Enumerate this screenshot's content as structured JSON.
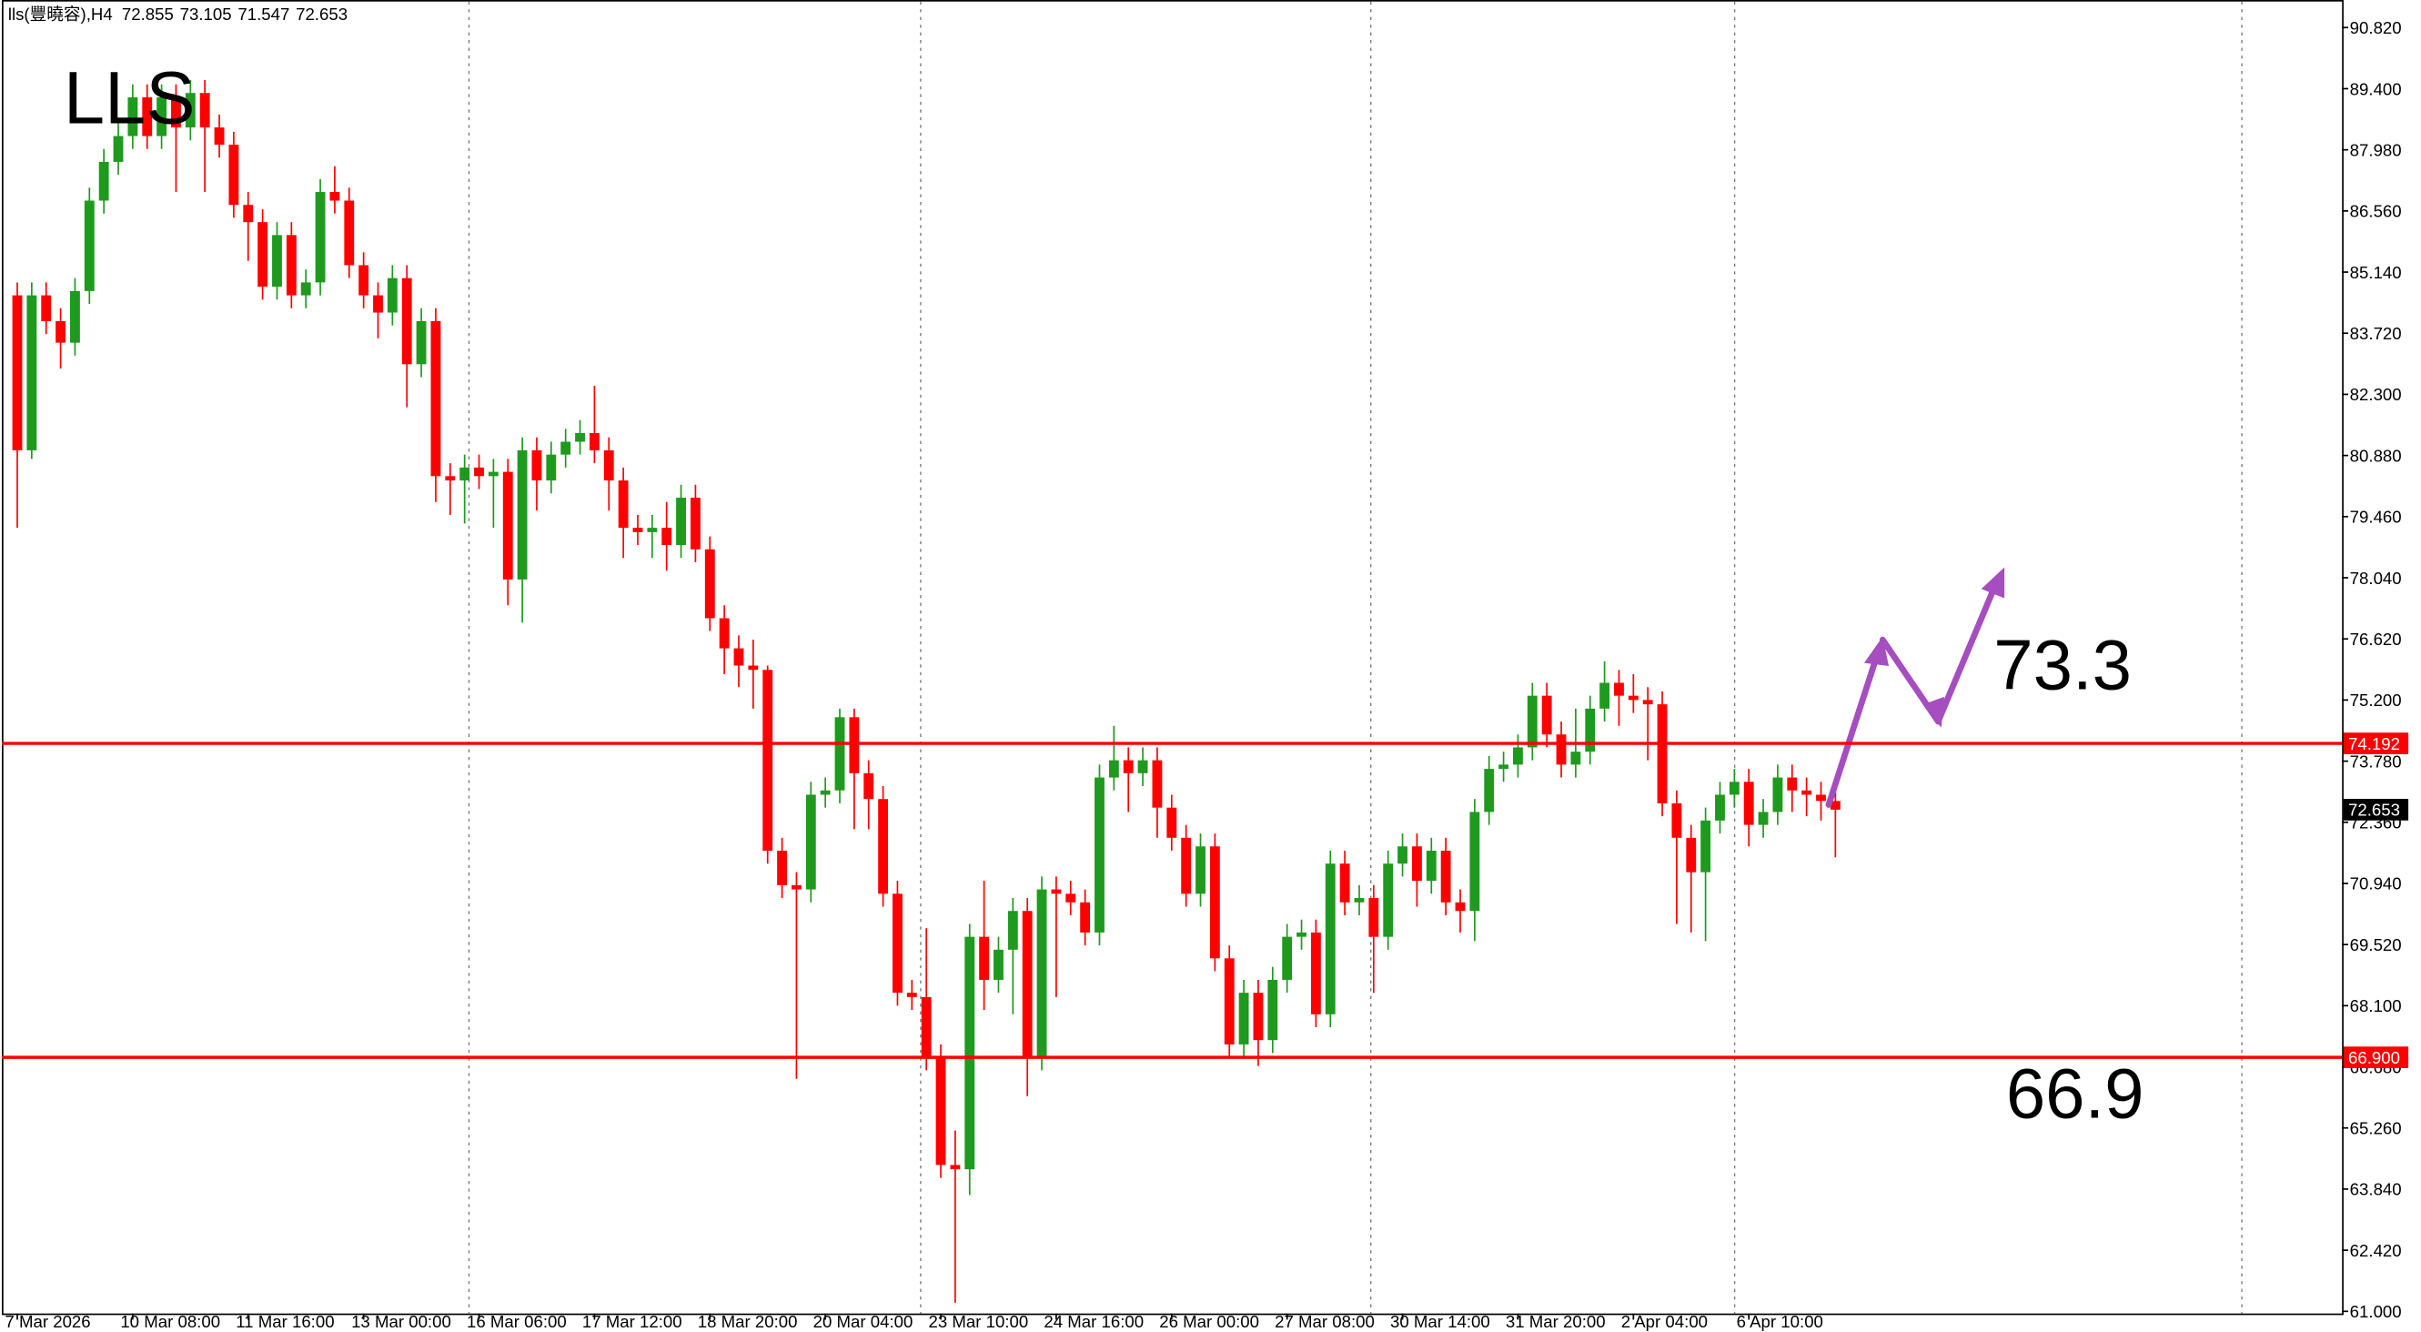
{
  "chart_data": {
    "type": "candlestick",
    "title": "lls(豐曉容),H4",
    "annotations": [
      "LLS",
      "73.3",
      "66.9"
    ],
    "categories": [
      "7 Mar 2026",
      null,
      null,
      null,
      null,
      null,
      null,
      null,
      "10 Mar 08:00",
      null,
      null,
      null,
      null,
      null,
      null,
      null,
      "11 Mar 16:00",
      null,
      null,
      null,
      null,
      null,
      null,
      null,
      "13 Mar 00:00",
      null,
      null,
      null,
      null,
      null,
      null,
      null,
      "16 Mar 06:00",
      null,
      null,
      null,
      null,
      null,
      null,
      null,
      "17 Mar 12:00",
      null,
      null,
      null,
      null,
      null,
      null,
      null,
      "18 Mar 20:00",
      null,
      null,
      null,
      null,
      null,
      null,
      null,
      "20 Mar 04:00",
      null,
      null,
      null,
      null,
      null,
      null,
      null,
      "23 Mar 10:00",
      null,
      null,
      null,
      null,
      null,
      null,
      null,
      "24 Mar 16:00",
      null,
      null,
      null,
      null,
      null,
      null,
      null,
      "26 Mar 00:00",
      null,
      null,
      null,
      null,
      null,
      null,
      null,
      "27 Mar 08:00",
      null,
      null,
      null,
      null,
      null,
      null,
      null,
      "30 Mar 14:00",
      null,
      null,
      null,
      null,
      null,
      null,
      null,
      "31 Mar 20:00",
      null,
      null,
      null,
      null,
      null,
      null,
      null,
      "2 Apr 04:00",
      null,
      null,
      null,
      null,
      null,
      null,
      null,
      "6 Apr 10:00",
      null,
      null,
      null,
      null,
      null,
      null
    ],
    "open": [
      84.6,
      81.0,
      84.6,
      84.0,
      83.5,
      84.7,
      86.8,
      87.7,
      88.3,
      89.2,
      88.3,
      89.2,
      88.5,
      89.3,
      88.5,
      88.1,
      86.7,
      86.3,
      84.8,
      86.0,
      84.6,
      84.9,
      87.0,
      86.8,
      85.3,
      84.6,
      84.2,
      85.0,
      83.0,
      84.0,
      80.4,
      80.3,
      80.6,
      80.4,
      80.5,
      78.0,
      81.0,
      80.3,
      80.9,
      81.2,
      81.4,
      81.0,
      80.3,
      79.2,
      79.1,
      79.2,
      78.8,
      79.9,
      78.7,
      77.1,
      76.4,
      76.0,
      75.9,
      71.7,
      70.9,
      70.8,
      73.0,
      73.1,
      74.8,
      73.5,
      72.9,
      70.7,
      68.4,
      68.3,
      66.9,
      64.4,
      64.3,
      69.7,
      68.7,
      69.4,
      70.3,
      66.9,
      70.8,
      70.7,
      70.5,
      69.8,
      73.4,
      73.8,
      73.5,
      73.8,
      72.7,
      72.0,
      70.7,
      71.8,
      69.2,
      67.2,
      68.4,
      67.3,
      68.7,
      69.7,
      69.8,
      67.9,
      71.4,
      70.5,
      70.6,
      69.7,
      71.4,
      71.8,
      71.0,
      71.7,
      70.5,
      70.3,
      72.6,
      73.6,
      73.7,
      74.1,
      75.3,
      74.4,
      73.7,
      74.0,
      75.0,
      75.6,
      75.3,
      75.2,
      75.1,
      72.8,
      72.0,
      71.2,
      72.4,
      73.0,
      73.3,
      72.3,
      72.6,
      73.4,
      73.1,
      73.0,
      72.855
    ],
    "high": [
      84.9,
      84.9,
      84.9,
      84.3,
      85.0,
      87.1,
      88.0,
      88.6,
      89.5,
      89.5,
      89.5,
      89.5,
      89.6,
      89.6,
      88.8,
      88.4,
      87.0,
      86.6,
      86.3,
      86.3,
      85.2,
      87.3,
      87.6,
      87.1,
      85.6,
      84.9,
      85.3,
      85.3,
      84.3,
      84.3,
      80.7,
      80.9,
      80.9,
      80.8,
      80.8,
      81.3,
      81.3,
      81.2,
      81.5,
      81.7,
      82.5,
      81.3,
      80.6,
      79.5,
      79.5,
      79.8,
      80.2,
      80.2,
      79.0,
      77.4,
      76.7,
      76.6,
      76.0,
      72.0,
      71.2,
      73.3,
      73.4,
      75.0,
      75.0,
      73.8,
      73.2,
      71.0,
      68.7,
      69.9,
      67.2,
      65.2,
      70.0,
      71.0,
      69.7,
      70.6,
      70.6,
      71.1,
      71.1,
      71.0,
      70.8,
      73.7,
      74.6,
      74.1,
      74.1,
      74.1,
      73.0,
      72.3,
      72.1,
      72.1,
      69.5,
      68.7,
      68.7,
      69.0,
      70.0,
      70.1,
      70.1,
      71.7,
      71.7,
      70.9,
      70.9,
      71.7,
      72.1,
      72.1,
      72.0,
      72.0,
      70.8,
      72.9,
      73.9,
      74.0,
      74.4,
      75.6,
      75.6,
      74.7,
      75.0,
      75.3,
      76.1,
      75.9,
      75.8,
      75.5,
      75.4,
      73.1,
      72.3,
      72.7,
      73.3,
      73.6,
      73.6,
      72.9,
      73.7,
      73.7,
      73.4,
      73.3,
      73.105
    ],
    "low": [
      79.2,
      80.8,
      83.7,
      82.9,
      83.2,
      84.4,
      86.5,
      87.4,
      88.0,
      88.0,
      88.0,
      87.0,
      88.2,
      87.0,
      87.8,
      86.4,
      85.4,
      84.5,
      84.5,
      84.3,
      84.3,
      84.6,
      86.5,
      85.0,
      84.3,
      83.6,
      83.9,
      82.0,
      82.7,
      79.8,
      79.5,
      79.3,
      80.1,
      79.2,
      77.4,
      77.0,
      79.6,
      80.0,
      80.6,
      80.9,
      80.7,
      79.6,
      78.5,
      78.8,
      78.5,
      78.2,
      78.5,
      78.4,
      76.8,
      75.8,
      75.5,
      75.0,
      71.4,
      70.6,
      66.4,
      70.5,
      72.7,
      72.8,
      72.2,
      72.2,
      70.4,
      68.1,
      68.0,
      66.6,
      64.1,
      61.2,
      63.7,
      68.0,
      68.4,
      67.9,
      66.0,
      66.6,
      68.3,
      70.2,
      69.5,
      69.5,
      73.1,
      72.6,
      73.2,
      72.0,
      71.7,
      70.4,
      70.4,
      68.9,
      66.9,
      66.9,
      66.7,
      67.0,
      68.4,
      69.4,
      67.6,
      67.6,
      70.2,
      70.2,
      68.4,
      69.4,
      71.1,
      70.4,
      70.7,
      70.2,
      69.8,
      69.6,
      72.3,
      73.3,
      73.4,
      73.8,
      74.1,
      73.4,
      73.4,
      73.7,
      74.7,
      74.6,
      74.9,
      73.8,
      72.5,
      70.0,
      69.8,
      69.6,
      72.1,
      72.7,
      71.8,
      72.0,
      72.3,
      72.6,
      72.5,
      72.4,
      71.547
    ],
    "close": [
      81.0,
      84.6,
      84.0,
      83.5,
      84.7,
      86.8,
      87.7,
      88.3,
      89.2,
      88.3,
      89.2,
      88.5,
      89.3,
      88.5,
      88.1,
      86.7,
      86.3,
      84.8,
      86.0,
      84.6,
      84.9,
      87.0,
      86.8,
      85.3,
      84.6,
      84.2,
      85.0,
      83.0,
      84.0,
      80.4,
      80.3,
      80.6,
      80.4,
      80.5,
      78.0,
      81.0,
      80.3,
      80.9,
      81.2,
      81.4,
      81.0,
      80.3,
      79.2,
      79.1,
      79.2,
      78.8,
      79.9,
      78.7,
      77.1,
      76.4,
      76.0,
      75.9,
      71.7,
      70.9,
      70.8,
      73.0,
      73.1,
      74.8,
      73.5,
      72.9,
      70.7,
      68.4,
      68.3,
      66.9,
      64.4,
      64.3,
      69.7,
      68.7,
      69.4,
      70.3,
      66.9,
      70.8,
      70.7,
      70.5,
      69.8,
      73.4,
      73.8,
      73.5,
      73.8,
      72.7,
      72.0,
      70.7,
      71.8,
      69.2,
      67.2,
      68.4,
      67.3,
      68.7,
      69.7,
      69.8,
      67.9,
      71.4,
      70.5,
      70.6,
      69.7,
      71.4,
      71.8,
      71.0,
      71.7,
      70.5,
      70.3,
      72.6,
      73.6,
      73.7,
      74.1,
      75.3,
      74.4,
      73.7,
      74.0,
      75.0,
      75.6,
      75.3,
      75.2,
      75.1,
      72.8,
      72.0,
      71.2,
      72.4,
      73.0,
      73.3,
      72.3,
      72.6,
      73.4,
      73.1,
      73.0,
      72.855,
      72.653
    ],
    "up_color": "#1e9a1e",
    "down_color": "#ff0000",
    "levels": [
      74.192,
      {
        "value": 66.9,
        "label": "66.900"
      }
    ],
    "level_color": "#ff0000",
    "ylim": [
      60.95,
      91.46
    ],
    "yticks": [
      {
        "value": 90.82,
        "label": "90.820"
      },
      {
        "value": 89.4,
        "label": "89.400"
      },
      {
        "value": 87.98,
        "label": "87.980"
      },
      {
        "value": 86.56,
        "label": "86.560"
      },
      {
        "value": 85.14,
        "label": "85.140"
      },
      {
        "value": 83.72,
        "label": "83.720"
      },
      {
        "value": 82.3,
        "label": "82.300"
      },
      {
        "value": 80.88,
        "label": "80.880"
      },
      {
        "value": 79.46,
        "label": "79.460"
      },
      {
        "value": 78.04,
        "label": "78.040"
      },
      {
        "value": 76.62,
        "label": "76.620"
      },
      {
        "value": 75.2,
        "label": "75.200"
      },
      {
        "value": 73.78,
        "label": "73.780"
      },
      {
        "value": 72.36,
        "label": "72.360"
      },
      {
        "value": 70.94,
        "label": "70.940"
      },
      {
        "value": 69.52,
        "label": "69.520"
      },
      {
        "value": 68.1,
        "label": "68.100"
      },
      {
        "value": 66.68,
        "label": "66.680"
      },
      {
        "value": 65.26,
        "label": "65.260"
      },
      {
        "value": 63.84,
        "label": "63.840"
      },
      {
        "value": 62.42,
        "label": "62.420"
      },
      {
        "value": 61.0,
        "label": "61.000"
      }
    ]
  }
}
